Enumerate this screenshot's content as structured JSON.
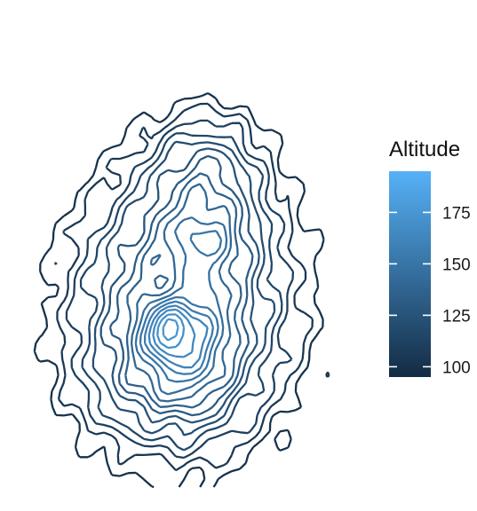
{
  "chart_data": {
    "type": "contour",
    "title": "",
    "xlabel": "",
    "ylabel": "",
    "axes_visible": false,
    "grid": false,
    "legend": {
      "title": "Altitude",
      "placement": "right",
      "type": "colorbar",
      "range": [
        95,
        195
      ],
      "ticks": [
        100,
        125,
        150,
        175
      ],
      "tick_labels": [
        "100",
        "125",
        "150",
        "175"
      ],
      "color_low": "#132b43",
      "color_high": "#56b1f7"
    },
    "contour_levels": [
      100,
      105,
      110,
      115,
      120,
      125,
      130,
      135,
      140,
      145,
      150,
      155,
      160,
      165,
      170,
      175,
      180,
      185,
      190
    ]
  }
}
